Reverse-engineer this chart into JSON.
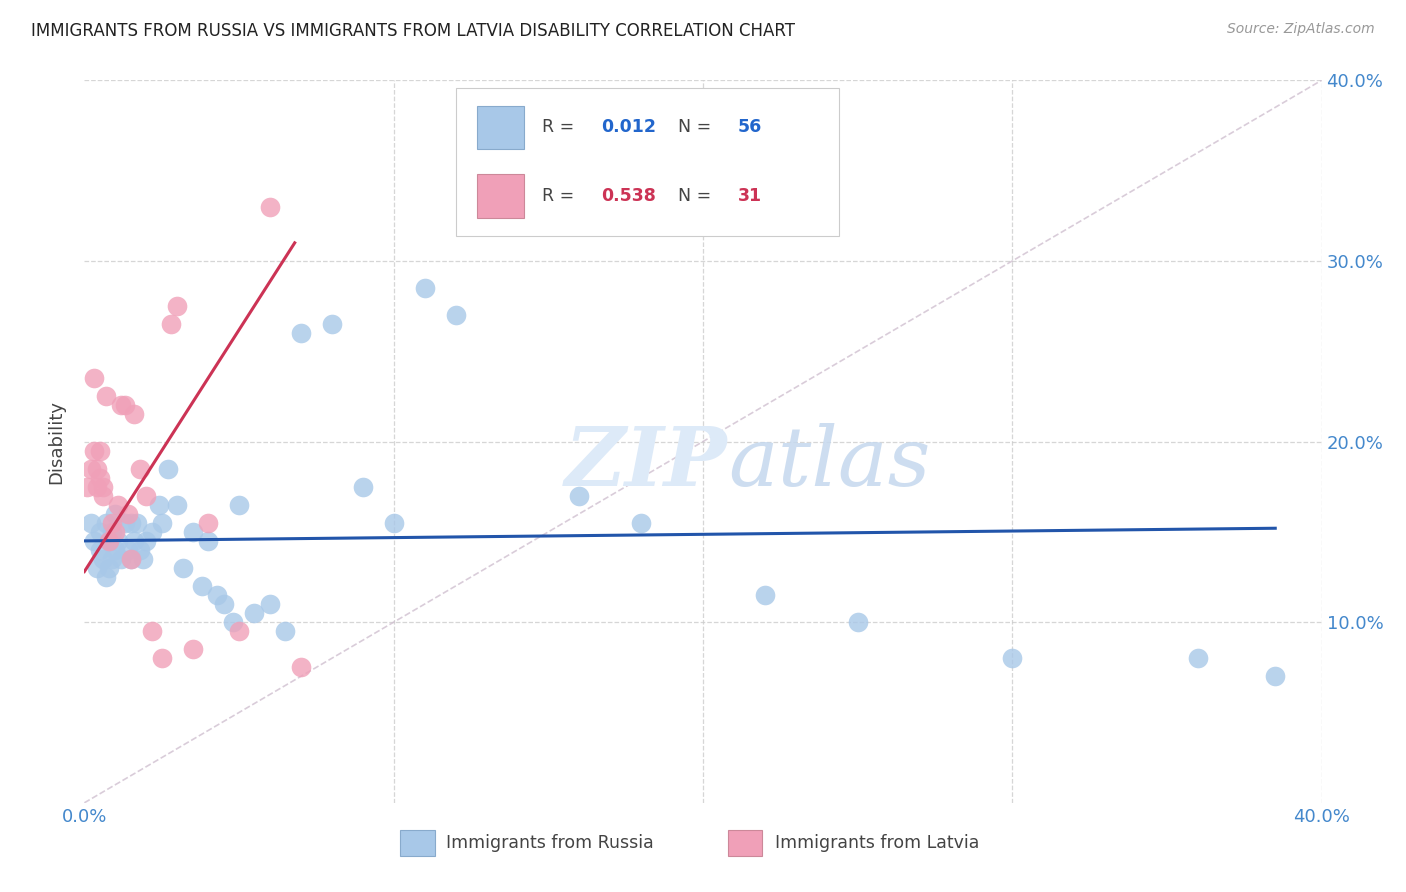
{
  "title": "IMMIGRANTS FROM RUSSIA VS IMMIGRANTS FROM LATVIA DISABILITY CORRELATION CHART",
  "source": "Source: ZipAtlas.com",
  "ylabel": "Disability",
  "legend_label_blue": "Immigrants from Russia",
  "legend_label_pink": "Immigrants from Latvia",
  "R_blue": 0.012,
  "N_blue": 56,
  "R_pink": 0.538,
  "N_pink": 31,
  "blue_color": "#a8c8e8",
  "pink_color": "#f0a0b8",
  "blue_line_color": "#2255aa",
  "pink_line_color": "#cc3355",
  "diag_line_color": "#d0c0d0",
  "background_color": "#ffffff",
  "xlim": [
    0.0,
    0.4
  ],
  "ylim": [
    0.0,
    0.4
  ],
  "yticks": [
    0.1,
    0.2,
    0.3,
    0.4
  ],
  "ytick_labels": [
    "10.0%",
    "20.0%",
    "30.0%",
    "40.0%"
  ],
  "blue_scatter_x": [
    0.002,
    0.003,
    0.004,
    0.005,
    0.005,
    0.006,
    0.007,
    0.007,
    0.008,
    0.008,
    0.009,
    0.009,
    0.01,
    0.01,
    0.011,
    0.012,
    0.013,
    0.014,
    0.015,
    0.015,
    0.016,
    0.017,
    0.018,
    0.019,
    0.02,
    0.022,
    0.024,
    0.025,
    0.027,
    0.03,
    0.032,
    0.035,
    0.038,
    0.04,
    0.043,
    0.045,
    0.048,
    0.05,
    0.055,
    0.06,
    0.065,
    0.07,
    0.08,
    0.09,
    0.1,
    0.11,
    0.12,
    0.14,
    0.16,
    0.18,
    0.2,
    0.22,
    0.25,
    0.3,
    0.36,
    0.385
  ],
  "blue_scatter_y": [
    0.155,
    0.145,
    0.13,
    0.14,
    0.15,
    0.135,
    0.125,
    0.155,
    0.13,
    0.145,
    0.135,
    0.15,
    0.14,
    0.16,
    0.145,
    0.135,
    0.155,
    0.14,
    0.135,
    0.155,
    0.145,
    0.155,
    0.14,
    0.135,
    0.145,
    0.15,
    0.165,
    0.155,
    0.185,
    0.165,
    0.13,
    0.15,
    0.12,
    0.145,
    0.115,
    0.11,
    0.1,
    0.165,
    0.105,
    0.11,
    0.095,
    0.26,
    0.265,
    0.175,
    0.155,
    0.285,
    0.27,
    0.325,
    0.17,
    0.155,
    0.365,
    0.115,
    0.1,
    0.08,
    0.08,
    0.07
  ],
  "pink_scatter_x": [
    0.001,
    0.002,
    0.003,
    0.003,
    0.004,
    0.004,
    0.005,
    0.005,
    0.006,
    0.006,
    0.007,
    0.008,
    0.009,
    0.01,
    0.011,
    0.012,
    0.013,
    0.014,
    0.015,
    0.016,
    0.018,
    0.02,
    0.022,
    0.025,
    0.028,
    0.03,
    0.035,
    0.04,
    0.05,
    0.06,
    0.07
  ],
  "pink_scatter_y": [
    0.175,
    0.185,
    0.235,
    0.195,
    0.175,
    0.185,
    0.18,
    0.195,
    0.17,
    0.175,
    0.225,
    0.145,
    0.155,
    0.15,
    0.165,
    0.22,
    0.22,
    0.16,
    0.135,
    0.215,
    0.185,
    0.17,
    0.095,
    0.08,
    0.265,
    0.275,
    0.085,
    0.155,
    0.095,
    0.33,
    0.075
  ],
  "blue_trend_x": [
    0.0,
    0.385
  ],
  "blue_trend_y": [
    0.145,
    0.152
  ],
  "pink_trend_x": [
    0.0,
    0.068
  ],
  "pink_trend_y": [
    0.128,
    0.31
  ]
}
